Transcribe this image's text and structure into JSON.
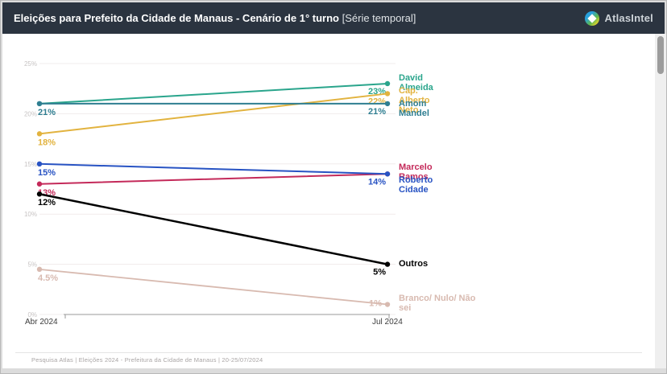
{
  "header": {
    "title": "Eleições para Prefeito da Cidade de Manaus - Cenário de 1° turno",
    "title_suffix": "[Série temporal]",
    "brand": "AtlasIntel",
    "brand_icon": "atlasintel-diamond-logo",
    "background_color": "#2b3440"
  },
  "footer": {
    "text": "Pesquisa Atlas  |  Eleições 2024 - Prefeitura da Cidade de Manaus  |  20-25/07/2024"
  },
  "chart_data": {
    "type": "line",
    "title": "Eleições para Prefeito da Cidade de Manaus - Cenário de 1° turno [Série temporal]",
    "x": [
      "Abr 2024",
      "Jul 2024"
    ],
    "ylim": [
      0,
      25
    ],
    "yticks": [
      "25%",
      "20%",
      "15%",
      "10%",
      "5%",
      "0%"
    ],
    "grid": true,
    "legend_position": "right-of-lines",
    "series": [
      {
        "name": "David Almeida",
        "color": "#2aa58c",
        "values": [
          21,
          23
        ],
        "start_label": null,
        "end_label": "23%"
      },
      {
        "name": "Cap. Alberto Neto",
        "color": "#e2b33f",
        "values": [
          18,
          22
        ],
        "start_label": "18%",
        "end_label": "22%"
      },
      {
        "name": "Amom Mandel",
        "color": "#2f7e91",
        "values": [
          21,
          21
        ],
        "start_label": "21%",
        "end_label": "21%"
      },
      {
        "name": "Marcelo Ramos",
        "color": "#c42a5a",
        "values": [
          13,
          14
        ],
        "start_label": "13%",
        "end_label": null
      },
      {
        "name": "Roberto Cidade",
        "color": "#2853c3",
        "values": [
          15,
          14
        ],
        "start_label": "15%",
        "end_label": "14%"
      },
      {
        "name": "Outros",
        "color": "#000000",
        "values": [
          12,
          5
        ],
        "start_label": "12%",
        "end_label": "5%"
      },
      {
        "name": "Branco/ Nulo/ Não sei",
        "color": "#d8bab0",
        "values": [
          4.5,
          1
        ],
        "start_label": "4.5%",
        "end_label": "1%"
      }
    ]
  }
}
